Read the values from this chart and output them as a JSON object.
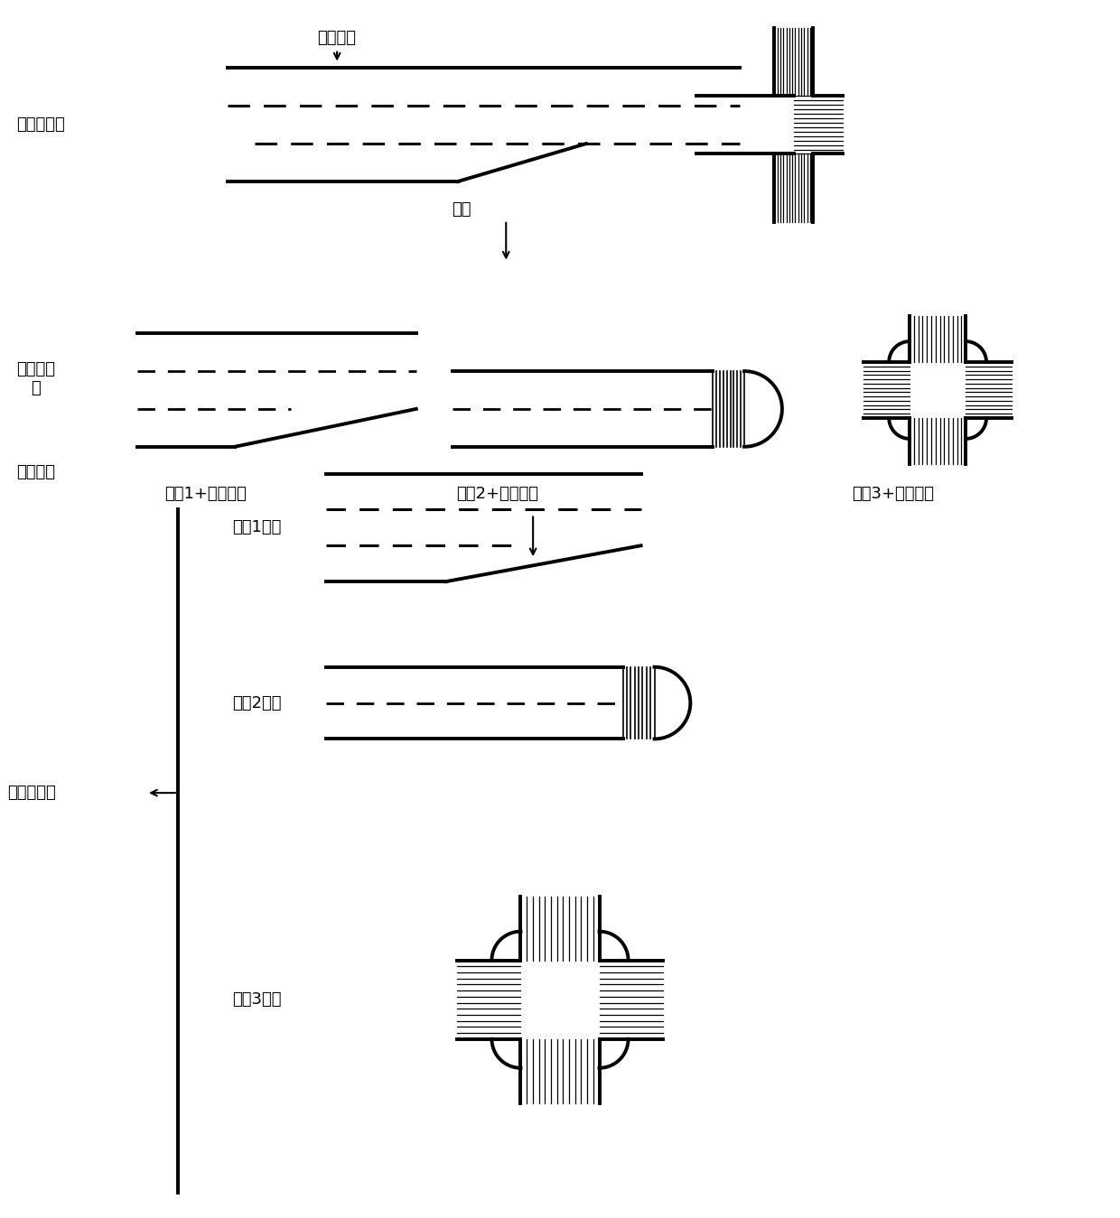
{
  "bg_color": "#ffffff",
  "text_color": "#000000",
  "line_color": "#000000",
  "labels": {
    "test_start": "测试起点",
    "hd_map": "高精度地图",
    "split": "分割",
    "test_path": "测试路径\n段",
    "road_info": "路段信息",
    "seg1_label": "路段1+路段信息",
    "seg2_label": "路段2+路段信息",
    "seg3_label": "路段3+路段信息",
    "seg1_info": "路段1信息",
    "seg2_info": "路段2信息",
    "seg3_info": "路段3信息",
    "test_lib": "测试路段库"
  },
  "font_size": 13,
  "fig_w": 12.4,
  "fig_h": 13.49,
  "dpi": 100
}
